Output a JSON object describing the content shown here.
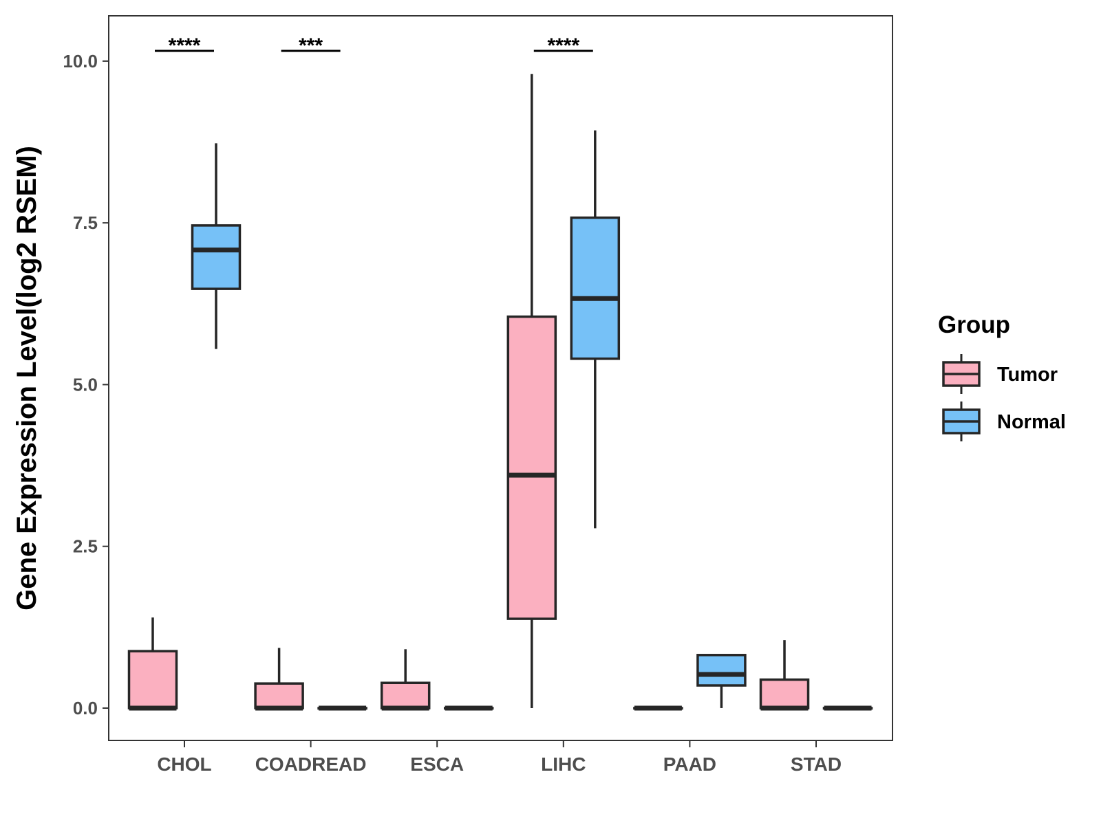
{
  "chart_data": {
    "type": "boxplot",
    "title": "",
    "xlabel": "",
    "ylabel": "Gene Expression Level(log2 RSEM)",
    "ylim": [
      -0.5,
      10.7
    ],
    "yticks": [
      0.0,
      2.5,
      5.0,
      7.5,
      10.0
    ],
    "ytick_labels": [
      "0.0",
      "2.5",
      "5.0",
      "7.5",
      "10.0"
    ],
    "categories": [
      "CHOL",
      "COADREAD",
      "ESCA",
      "LIHC",
      "PAAD",
      "STAD"
    ],
    "legend": {
      "title": "Group",
      "position": "right",
      "entries": [
        {
          "name": "Tumor",
          "color": "#FBB0C0"
        },
        {
          "name": "Normal",
          "color": "#76C1F7"
        }
      ]
    },
    "series": [
      {
        "name": "Tumor",
        "color": "#FBB0C0",
        "boxes": [
          {
            "category": "CHOL",
            "min": 0.0,
            "q1": 0.0,
            "median": 0.0,
            "q3": 0.88,
            "max": 1.4
          },
          {
            "category": "COADREAD",
            "min": 0.0,
            "q1": 0.0,
            "median": 0.0,
            "q3": 0.38,
            "max": 0.93
          },
          {
            "category": "ESCA",
            "min": 0.0,
            "q1": 0.0,
            "median": 0.0,
            "q3": 0.39,
            "max": 0.91
          },
          {
            "category": "LIHC",
            "min": 0.0,
            "q1": 1.38,
            "median": 3.6,
            "q3": 6.05,
            "max": 9.8
          },
          {
            "category": "PAAD",
            "min": 0.0,
            "q1": 0.0,
            "median": 0.0,
            "q3": 0.0,
            "max": 0.0
          },
          {
            "category": "STAD",
            "min": 0.0,
            "q1": 0.0,
            "median": 0.0,
            "q3": 0.44,
            "max": 1.05
          }
        ]
      },
      {
        "name": "Normal",
        "color": "#76C1F7",
        "boxes": [
          {
            "category": "CHOL",
            "min": 5.55,
            "q1": 6.48,
            "median": 7.08,
            "q3": 7.46,
            "max": 8.73
          },
          {
            "category": "COADREAD",
            "min": 0.0,
            "q1": 0.0,
            "median": 0.0,
            "q3": 0.0,
            "max": 0.0
          },
          {
            "category": "ESCA",
            "min": 0.0,
            "q1": 0.0,
            "median": 0.0,
            "q3": 0.0,
            "max": 0.0
          },
          {
            "category": "LIHC",
            "min": 2.78,
            "q1": 5.4,
            "median": 6.33,
            "q3": 7.58,
            "max": 8.93
          },
          {
            "category": "PAAD",
            "min": 0.0,
            "q1": 0.35,
            "median": 0.52,
            "q3": 0.82,
            "max": 0.82
          },
          {
            "category": "STAD",
            "min": 0.0,
            "q1": 0.0,
            "median": 0.0,
            "q3": 0.0,
            "max": 0.0
          }
        ]
      }
    ],
    "annotations": [
      {
        "category": "CHOL",
        "label": "****"
      },
      {
        "category": "COADREAD",
        "label": "***"
      },
      {
        "category": "LIHC",
        "label": "****"
      }
    ]
  }
}
